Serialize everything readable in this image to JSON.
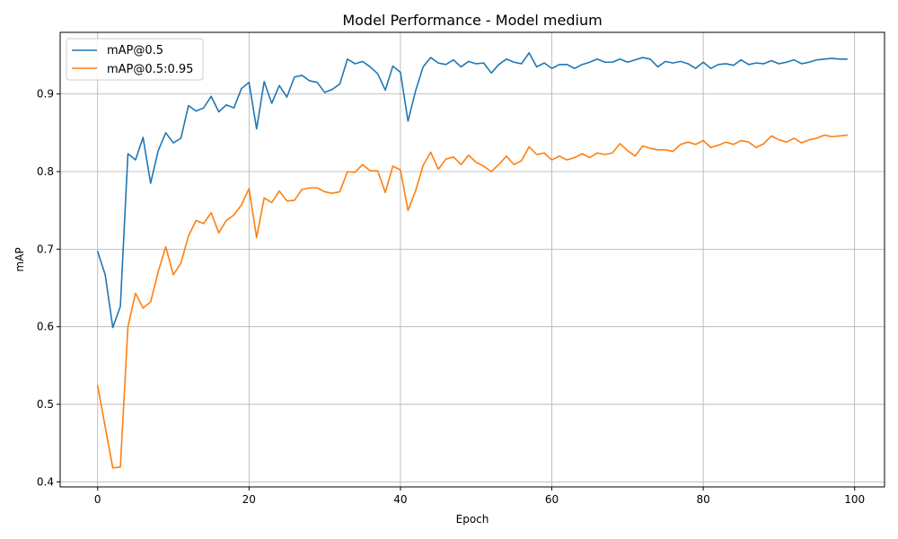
{
  "chart_data": {
    "type": "line",
    "title": "Model Performance - Model medium",
    "xlabel": "Epoch",
    "ylabel": "mAP",
    "xlim": [
      -4.95,
      103.95
    ],
    "ylim": [
      0.3935,
      0.9795
    ],
    "xticks": [
      0,
      20,
      40,
      60,
      80,
      100
    ],
    "yticks": [
      0.4,
      0.5,
      0.6,
      0.7,
      0.8,
      0.9
    ],
    "grid": true,
    "legend": "top-left",
    "series": [
      {
        "name": "mAP@0.5",
        "color": "#1f77b4",
        "values": [
          0.697,
          0.667,
          0.599,
          0.626,
          0.823,
          0.815,
          0.844,
          0.785,
          0.827,
          0.85,
          0.837,
          0.843,
          0.885,
          0.878,
          0.882,
          0.897,
          0.877,
          0.886,
          0.882,
          0.907,
          0.915,
          0.855,
          0.916,
          0.888,
          0.911,
          0.896,
          0.922,
          0.924,
          0.917,
          0.915,
          0.902,
          0.906,
          0.913,
          0.945,
          0.939,
          0.942,
          0.935,
          0.926,
          0.905,
          0.936,
          0.928,
          0.865,
          0.904,
          0.935,
          0.947,
          0.94,
          0.938,
          0.944,
          0.935,
          0.942,
          0.939,
          0.94,
          0.927,
          0.938,
          0.945,
          0.941,
          0.939,
          0.953,
          0.935,
          0.94,
          0.933,
          0.938,
          0.938,
          0.933,
          0.938,
          0.941,
          0.945,
          0.941,
          0.941,
          0.945,
          0.941,
          0.944,
          0.947,
          0.945,
          0.935,
          0.942,
          0.94,
          0.942,
          0.939,
          0.933,
          0.941,
          0.933,
          0.938,
          0.939,
          0.937,
          0.944,
          0.938,
          0.94,
          0.939,
          0.943,
          0.939,
          0.941,
          0.944,
          0.939,
          0.941,
          0.944,
          0.945,
          0.946,
          0.945,
          0.945
        ]
      },
      {
        "name": "mAP@0.5:0.95",
        "color": "#ff7f0e",
        "values": [
          0.524,
          0.471,
          0.418,
          0.419,
          0.6,
          0.643,
          0.624,
          0.632,
          0.671,
          0.703,
          0.667,
          0.682,
          0.717,
          0.737,
          0.733,
          0.747,
          0.721,
          0.737,
          0.744,
          0.757,
          0.778,
          0.715,
          0.766,
          0.76,
          0.775,
          0.762,
          0.763,
          0.777,
          0.779,
          0.779,
          0.774,
          0.772,
          0.774,
          0.8,
          0.799,
          0.809,
          0.801,
          0.801,
          0.773,
          0.807,
          0.802,
          0.75,
          0.775,
          0.808,
          0.825,
          0.803,
          0.816,
          0.819,
          0.809,
          0.821,
          0.812,
          0.807,
          0.8,
          0.809,
          0.82,
          0.809,
          0.814,
          0.832,
          0.822,
          0.824,
          0.815,
          0.82,
          0.815,
          0.818,
          0.823,
          0.818,
          0.824,
          0.822,
          0.824,
          0.836,
          0.827,
          0.82,
          0.833,
          0.83,
          0.828,
          0.828,
          0.826,
          0.835,
          0.838,
          0.835,
          0.84,
          0.831,
          0.834,
          0.838,
          0.835,
          0.84,
          0.838,
          0.831,
          0.836,
          0.846,
          0.841,
          0.838,
          0.843,
          0.837,
          0.841,
          0.843,
          0.847,
          0.845,
          0.846,
          0.847
        ]
      }
    ]
  }
}
